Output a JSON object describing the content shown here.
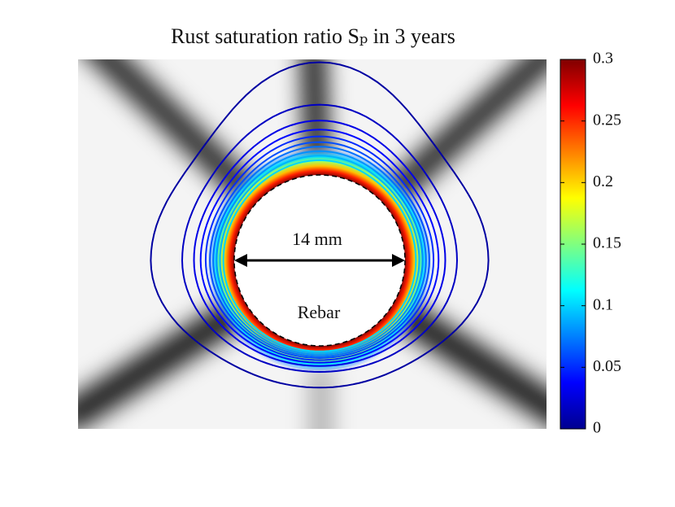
{
  "chart_data": {
    "type": "contour",
    "title": "Rust saturation ratio Sₚ in 3 years",
    "annotations": [
      "14 mm",
      "Rebar"
    ],
    "clim": [
      0,
      0.3
    ],
    "cticks": [
      0,
      0.05,
      0.1,
      0.15,
      0.2,
      0.25,
      0.3
    ],
    "colormap": "jet",
    "levels": [
      0.01,
      0.02,
      0.03,
      0.04,
      0.05,
      0.06,
      0.07,
      0.08,
      0.09,
      0.1
    ]
  }
}
